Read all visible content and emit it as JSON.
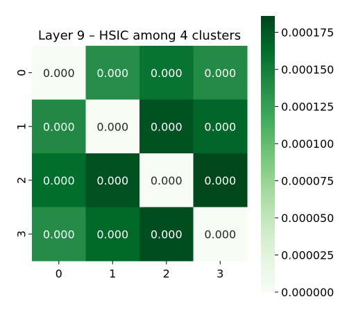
{
  "chart_data": {
    "type": "heatmap",
    "title": "Layer 9 – HSIC among 4 clusters",
    "row_labels": [
      "0",
      "1",
      "2",
      "3"
    ],
    "col_labels": [
      "0",
      "1",
      "2",
      "3"
    ],
    "values": [
      [
        0.0,
        0.000137,
        0.000157,
        0.00014
      ],
      [
        0.000141,
        0.0,
        0.000178,
        0.000167
      ],
      [
        0.000162,
        0.000179,
        0.0,
        0.000184
      ],
      [
        0.000139,
        0.000165,
        0.000181,
        0.0
      ]
    ],
    "cell_labels": [
      [
        "0.000",
        "0.000",
        "0.000",
        "0.000"
      ],
      [
        "0.000",
        "0.000",
        "0.000",
        "0.000"
      ],
      [
        "0.000",
        "0.000",
        "0.000",
        "0.000"
      ],
      [
        "0.000",
        "0.000",
        "0.000",
        "0.000"
      ]
    ],
    "colormap": "Greens",
    "colorbar": {
      "range": [
        0.0,
        0.000186
      ],
      "ticks": [
        0.0,
        2.5e-05,
        5e-05,
        7.5e-05,
        0.0001,
        0.000125,
        0.00015,
        0.000175
      ],
      "tick_labels": [
        "0.000000",
        "0.000025",
        "0.000050",
        "0.000075",
        "0.000100",
        "0.000125",
        "0.000150",
        "0.000175"
      ],
      "placement": "right"
    },
    "colors": {
      "low": "#f7fcf5",
      "high": "#00441b",
      "light_text": "#ffffff",
      "dark_text": "#262626"
    }
  }
}
